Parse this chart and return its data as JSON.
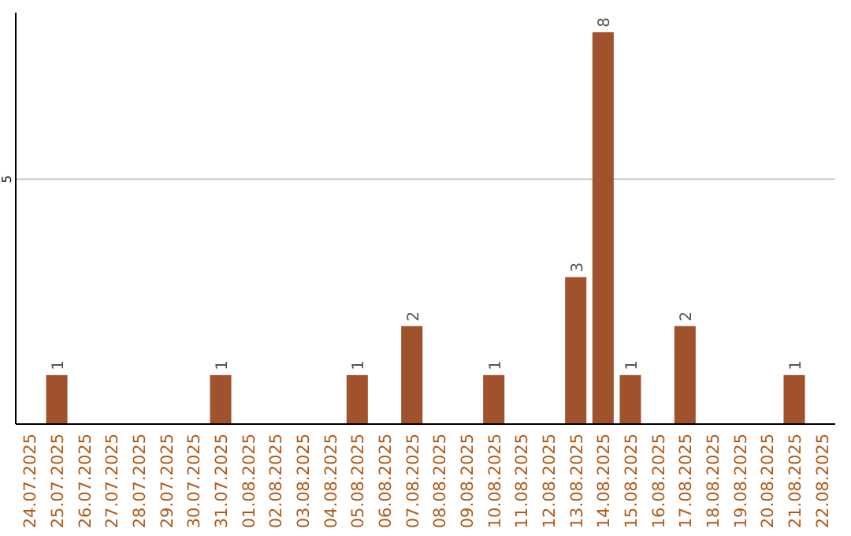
{
  "chart_data": {
    "type": "bar",
    "categories": [
      "24.07.2025",
      "25.07.2025",
      "26.07.2025",
      "27.07.2025",
      "28.07.2025",
      "29.07.2025",
      "30.07.2025",
      "31.07.2025",
      "01.08.2025",
      "02.08.2025",
      "03.08.2025",
      "04.08.2025",
      "05.08.2025",
      "06.08.2025",
      "07.08.2025",
      "08.08.2025",
      "09.08.2025",
      "10.08.2025",
      "11.08.2025",
      "12.08.2025",
      "13.08.2025",
      "14.08.2025",
      "15.08.2025",
      "16.08.2025",
      "17.08.2025",
      "18.08.2025",
      "19.08.2025",
      "20.08.2025",
      "21.08.2025",
      "22.08.2025"
    ],
    "values": [
      0,
      1,
      0,
      0,
      0,
      0,
      0,
      1,
      0,
      0,
      0,
      0,
      1,
      0,
      2,
      0,
      0,
      1,
      0,
      0,
      3,
      8,
      1,
      0,
      2,
      0,
      0,
      0,
      1,
      0
    ],
    "value_labels": [
      null,
      "1",
      null,
      null,
      null,
      null,
      null,
      "1",
      null,
      null,
      null,
      null,
      "1",
      null,
      "2",
      null,
      null,
      "1",
      null,
      null,
      "3",
      "8",
      "1",
      null,
      "2",
      null,
      null,
      null,
      "1",
      null
    ],
    "color": "#a0522d",
    "ylim": [
      0,
      8.4
    ],
    "yticks": [
      5
    ],
    "grid": "y"
  }
}
